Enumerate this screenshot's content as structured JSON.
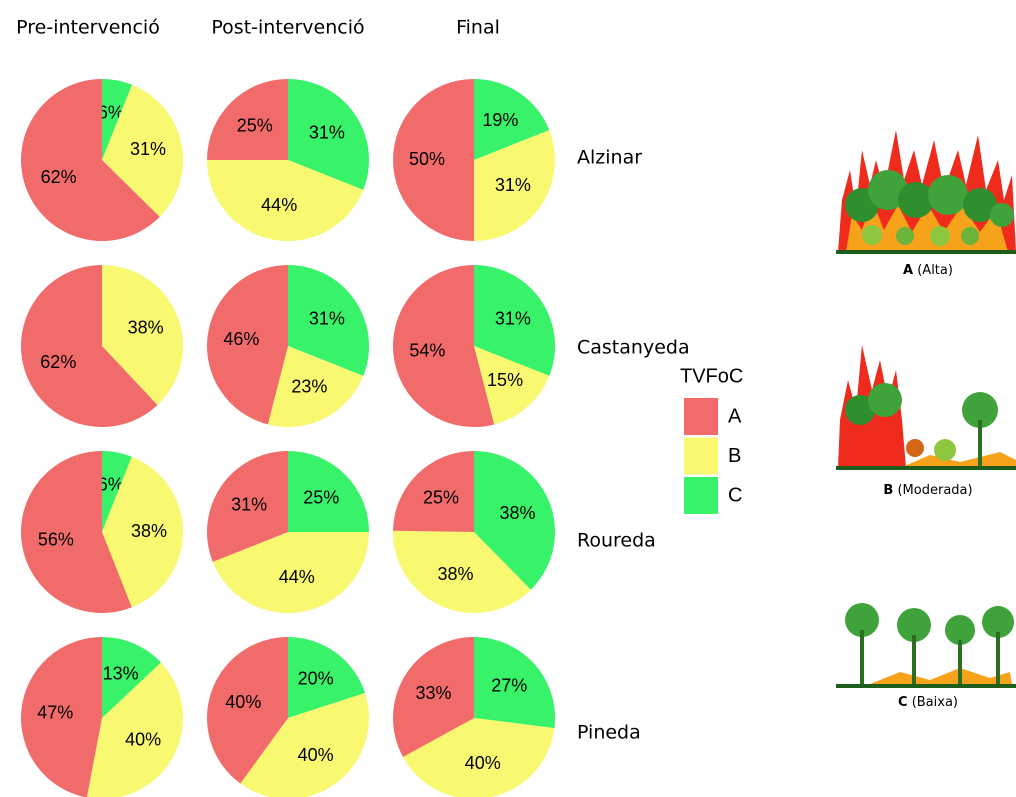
{
  "column_titles": [
    "Pre-intervenció",
    "Post-intervenció",
    "Final"
  ],
  "row_titles": [
    "Alzinar",
    "Castanyeda",
    "Roureda",
    "Pineda"
  ],
  "legend": {
    "title": "TVFoC",
    "categories": [
      "A",
      "B",
      "C"
    ],
    "colors": [
      "#f26b6b",
      "#f9f871",
      "#38f36a"
    ]
  },
  "illustrations": [
    {
      "letter": "A",
      "text": "(Alta)"
    },
    {
      "letter": "B",
      "text": "(Moderada)"
    },
    {
      "letter": "C",
      "text": "(Baixa)"
    }
  ],
  "chart_data": [
    {
      "type": "pie",
      "values": [
        62,
        31,
        6
      ],
      "value_labels": [
        "62%",
        "31%",
        "6%"
      ]
    },
    {
      "type": "pie",
      "values": [
        25,
        44,
        31
      ],
      "value_labels": [
        "25%",
        "44%",
        "31%"
      ]
    },
    {
      "type": "pie",
      "values": [
        50,
        31,
        19
      ],
      "value_labels": [
        "50%",
        "31%",
        "19%"
      ]
    },
    {
      "type": "pie",
      "values": [
        62,
        38,
        0
      ],
      "value_labels": [
        "62%",
        "38%",
        null
      ]
    },
    {
      "type": "pie",
      "values": [
        46,
        23,
        31
      ],
      "value_labels": [
        "46%",
        "23%",
        "31%"
      ]
    },
    {
      "type": "pie",
      "values": [
        54,
        15,
        31
      ],
      "value_labels": [
        "54%",
        "15%",
        "31%"
      ]
    },
    {
      "type": "pie",
      "values": [
        56,
        38,
        6
      ],
      "value_labels": [
        "56%",
        "38%",
        "6%"
      ]
    },
    {
      "type": "pie",
      "values": [
        31,
        44,
        25
      ],
      "value_labels": [
        "31%",
        "44%",
        "25%"
      ]
    },
    {
      "type": "pie",
      "values": [
        25,
        38,
        38
      ],
      "value_labels": [
        "25%",
        "38%",
        "38%"
      ]
    },
    {
      "type": "pie",
      "values": [
        47,
        40,
        13
      ],
      "value_labels": [
        "47%",
        "40%",
        "13%"
      ]
    },
    {
      "type": "pie",
      "values": [
        40,
        40,
        20
      ],
      "value_labels": [
        "40%",
        "40%",
        "20%"
      ]
    },
    {
      "type": "pie",
      "values": [
        33,
        40,
        27
      ],
      "value_labels": [
        "33%",
        "40%",
        "27%"
      ]
    }
  ]
}
